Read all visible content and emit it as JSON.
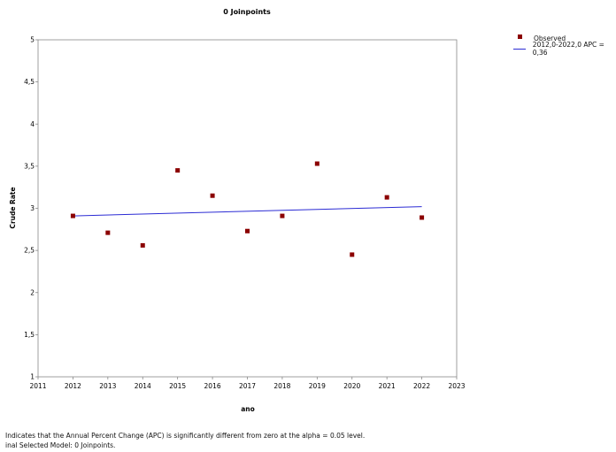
{
  "chart_data": {
    "type": "scatter",
    "title": "0 Joinpoints",
    "xlabel": "ano",
    "ylabel": "Crude Rate",
    "xlim": [
      2011,
      2023
    ],
    "ylim": [
      1,
      5
    ],
    "x_ticks": [
      "2011",
      "2012",
      "2013",
      "2014",
      "2015",
      "2016",
      "2017",
      "2018",
      "2019",
      "2020",
      "2021",
      "2022",
      "2023"
    ],
    "y_ticks": [
      "1",
      "1,5",
      "2",
      "2,5",
      "3",
      "3,5",
      "4",
      "4,5",
      "5"
    ],
    "grid": false,
    "legend_position": "top-right",
    "series": [
      {
        "name": "Observed",
        "kind": "points",
        "color": "#8b0000",
        "x": [
          2012,
          2013,
          2014,
          2015,
          2016,
          2017,
          2018,
          2019,
          2020,
          2021,
          2022
        ],
        "y": [
          2.91,
          2.71,
          2.56,
          3.45,
          3.15,
          2.73,
          2.91,
          3.53,
          2.45,
          3.13,
          2.89
        ]
      },
      {
        "name": "2012,0-2022,0 APC  =  0,36",
        "kind": "line",
        "color": "#2b2bd4",
        "x": [
          2012,
          2022
        ],
        "y": [
          2.91,
          3.02
        ]
      }
    ]
  },
  "footnotes": [
    " Indicates that the Annual Percent Change (APC) is significantly different from zero at the alpha = 0.05 level.",
    "inal Selected Model: 0 Joinpoints."
  ]
}
